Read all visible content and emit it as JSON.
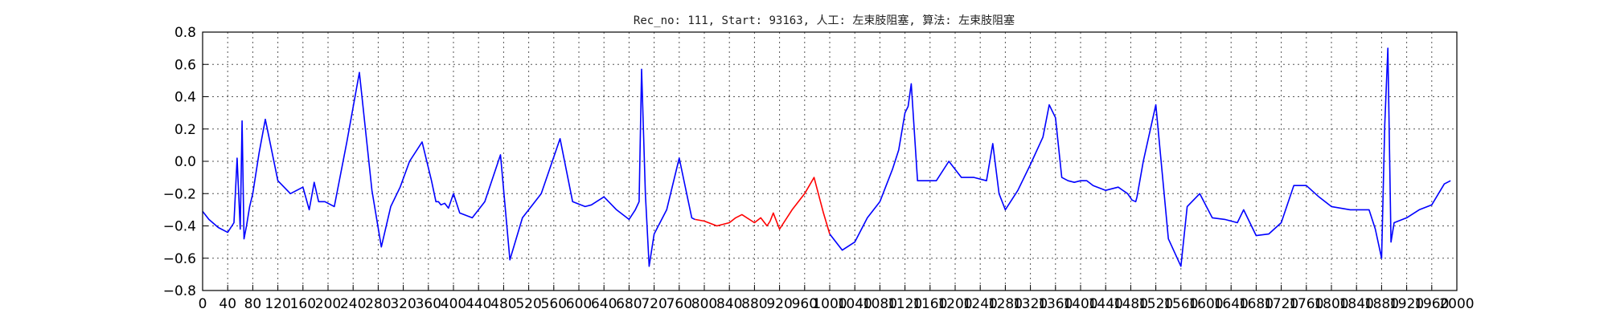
{
  "chart_data": {
    "type": "line",
    "title": "Rec_no: 111, Start: 93163, 人工: 左束肢阻塞, 算法: 左束肢阻塞",
    "xlabel": "",
    "ylabel": "",
    "xlim": [
      0,
      2000
    ],
    "ylim": [
      -0.8,
      0.8
    ],
    "grid": true,
    "y_ticks": [
      "−0.8",
      "−0.6",
      "−0.4",
      "−0.2",
      "0.0",
      "0.2",
      "0.4",
      "0.6",
      "0.8"
    ],
    "x_ticks": [
      "0",
      "40",
      "80",
      "120",
      "160",
      "200",
      "240",
      "280",
      "320",
      "360",
      "400",
      "440",
      "480",
      "520",
      "560",
      "600",
      "640",
      "680",
      "720",
      "760",
      "800",
      "840",
      "880",
      "920",
      "960",
      "1000",
      "1040",
      "1080",
      "1120",
      "1160",
      "1200",
      "1240",
      "1280",
      "1320",
      "1360",
      "1400",
      "1440",
      "1480",
      "1520",
      "1560",
      "1600",
      "1640",
      "1680",
      "1720",
      "1760",
      "1800",
      "1840",
      "1880",
      "1920",
      "1960",
      "2000"
    ],
    "highlight_range": [
      800,
      1000
    ],
    "colors": {
      "signal": "#0000ff",
      "highlight": "#ff0000"
    },
    "series": [
      {
        "x": [
          0,
          10,
          25,
          40,
          50,
          55,
          60,
          63,
          66,
          70,
          75,
          80,
          90,
          100,
          120,
          140,
          160,
          170,
          178,
          185,
          195,
          210,
          230,
          250,
          270,
          285,
          300,
          315,
          330,
          350,
          365,
          372,
          376,
          380,
          386,
          392,
          400,
          410,
          430,
          450,
          475,
          490,
          510,
          540,
          570,
          590,
          610,
          620,
          640,
          660,
          680,
          690,
          696,
          700,
          706,
          712,
          720,
          740,
          760,
          780,
          785,
          800,
          820,
          840,
          850,
          860,
          880,
          890,
          900,
          905,
          910,
          920,
          940,
          960,
          975,
          990,
          1000,
          1020,
          1040,
          1060,
          1080,
          1100,
          1110,
          1120,
          1125,
          1130,
          1140,
          1150,
          1170,
          1190,
          1210,
          1230,
          1250,
          1260,
          1270,
          1280,
          1300,
          1320,
          1340,
          1350,
          1360,
          1370,
          1380,
          1390,
          1400,
          1410,
          1420,
          1440,
          1460,
          1475,
          1482,
          1488,
          1490,
          1500,
          1520,
          1540,
          1560,
          1570,
          1590,
          1610,
          1630,
          1650,
          1660,
          1680,
          1700,
          1720,
          1740,
          1760,
          1780,
          1800,
          1830,
          1860,
          1870,
          1880,
          1885,
          1890,
          1895,
          1900,
          1920,
          1940,
          1960,
          1980,
          1990
        ],
        "y": [
          -0.31,
          -0.36,
          -0.41,
          -0.44,
          -0.38,
          0.02,
          -0.42,
          0.25,
          -0.48,
          -0.4,
          -0.28,
          -0.2,
          0.05,
          0.26,
          -0.12,
          -0.2,
          -0.16,
          -0.3,
          -0.13,
          -0.25,
          -0.25,
          -0.28,
          0.12,
          0.55,
          -0.18,
          -0.53,
          -0.28,
          -0.16,
          0.0,
          0.12,
          -0.12,
          -0.25,
          -0.25,
          -0.27,
          -0.26,
          -0.29,
          -0.2,
          -0.32,
          -0.35,
          -0.25,
          0.04,
          -0.61,
          -0.35,
          -0.2,
          0.14,
          -0.25,
          -0.28,
          -0.27,
          -0.22,
          -0.3,
          -0.36,
          -0.3,
          -0.25,
          0.57,
          -0.2,
          -0.65,
          -0.45,
          -0.3,
          0.02,
          -0.35,
          -0.36,
          -0.37,
          -0.4,
          -0.38,
          -0.35,
          -0.33,
          -0.38,
          -0.35,
          -0.4,
          -0.37,
          -0.32,
          -0.42,
          -0.3,
          -0.2,
          -0.1,
          -0.32,
          -0.45,
          -0.55,
          -0.5,
          -0.35,
          -0.25,
          -0.05,
          0.07,
          0.3,
          0.34,
          0.48,
          -0.12,
          -0.12,
          -0.12,
          0.0,
          -0.1,
          -0.1,
          -0.12,
          0.11,
          -0.2,
          -0.3,
          -0.18,
          -0.02,
          0.15,
          0.35,
          0.27,
          -0.1,
          -0.12,
          -0.13,
          -0.12,
          -0.12,
          -0.15,
          -0.18,
          -0.16,
          -0.2,
          -0.24,
          -0.25,
          -0.22,
          0.0,
          0.35,
          -0.48,
          -0.65,
          -0.28,
          -0.2,
          -0.35,
          -0.36,
          -0.38,
          -0.3,
          -0.46,
          -0.45,
          -0.38,
          -0.15,
          -0.15,
          -0.22,
          -0.28,
          -0.3,
          -0.3,
          -0.42,
          -0.6,
          0.22,
          0.7,
          -0.5,
          -0.38,
          -0.35,
          -0.3,
          -0.27,
          -0.14,
          -0.12
        ]
      }
    ]
  }
}
